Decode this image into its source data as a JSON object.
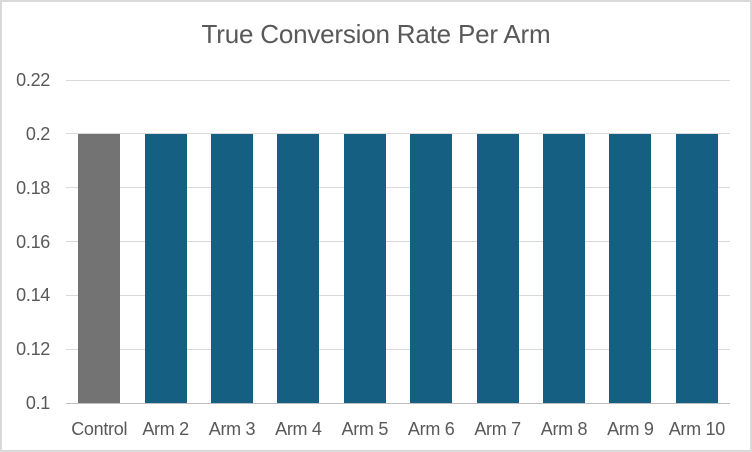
{
  "chart_data": {
    "type": "bar",
    "title": "True Conversion Rate Per Arm",
    "categories": [
      "Control",
      "Arm 2",
      "Arm 3",
      "Arm 4",
      "Arm 5",
      "Arm 6",
      "Arm 7",
      "Arm 8",
      "Arm 9",
      "Arm 10"
    ],
    "values": [
      0.2,
      0.2,
      0.2,
      0.2,
      0.2,
      0.2,
      0.2,
      0.2,
      0.2,
      0.2
    ],
    "bar_colors": [
      "#737373",
      "#156082",
      "#156082",
      "#156082",
      "#156082",
      "#156082",
      "#156082",
      "#156082",
      "#156082",
      "#156082"
    ],
    "xlabel": "",
    "ylabel": "",
    "ylim": [
      0.1,
      0.22
    ],
    "yticks": [
      0.1,
      0.12,
      0.14,
      0.16,
      0.18,
      0.2,
      0.22
    ],
    "grid": "horizontal",
    "legend": "none"
  },
  "style": {
    "background": "#FFFFFF",
    "border_color": "#D9D9D9",
    "gridline_color": "#D9D9D9",
    "axis_line_color": "#BFBFBF",
    "text_color": "#595959",
    "control_bar_color": "#737373",
    "arm_bar_color": "#156082"
  }
}
